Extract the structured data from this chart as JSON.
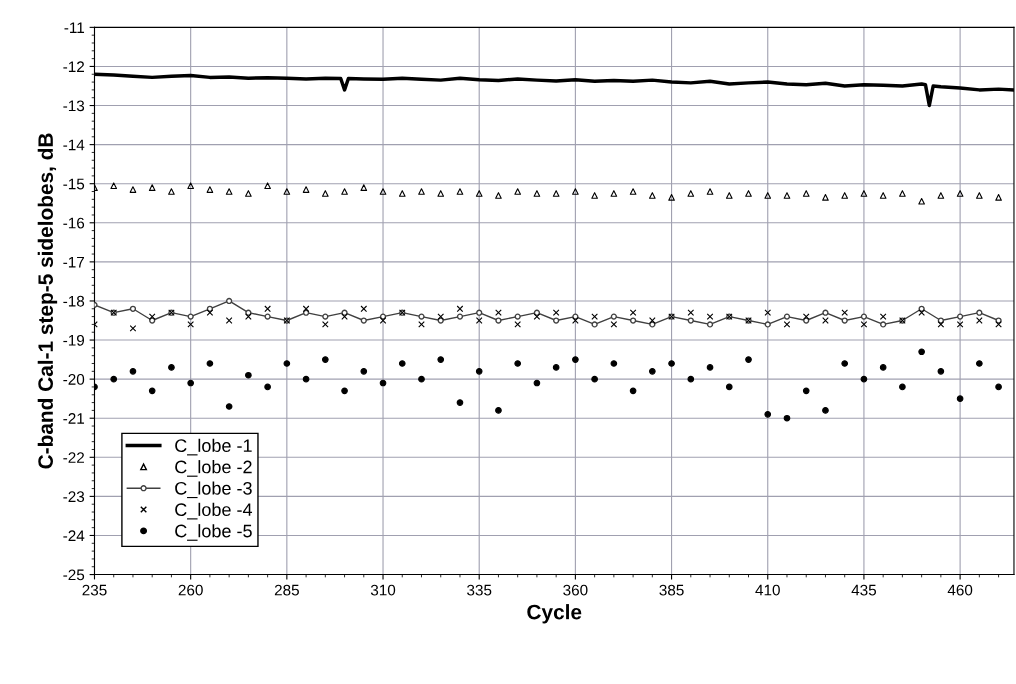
{
  "chart_data": {
    "type": "scatter",
    "xlabel": "Cycle",
    "ylabel": "C-band Cal-1 step-5 sidelobes, dB",
    "x": [
      235,
      240,
      245,
      250,
      255,
      260,
      265,
      270,
      275,
      280,
      285,
      290,
      295,
      300,
      305,
      310,
      315,
      320,
      325,
      330,
      335,
      340,
      345,
      350,
      355,
      360,
      365,
      370,
      375,
      380,
      385,
      390,
      395,
      400,
      405,
      410,
      415,
      420,
      425,
      430,
      435,
      440,
      445,
      450,
      455,
      460,
      465,
      470
    ],
    "xlim": [
      235,
      474
    ],
    "xticks": [
      235,
      260,
      285,
      310,
      335,
      360,
      385,
      410,
      435,
      460
    ],
    "ylim": [
      -25,
      -11
    ],
    "yticks": [
      -25,
      -24,
      -23,
      -22,
      -21,
      -20,
      -19,
      -18,
      -17,
      -16,
      -15,
      -14,
      -13,
      -12,
      -11
    ],
    "grid": true,
    "legend": "bottom left",
    "series": [
      {
        "name": "C_lobe -1",
        "type": "line",
        "marker": "none",
        "color": "#000000",
        "x": [
          235,
          240,
          245,
          250,
          255,
          260,
          265,
          270,
          275,
          280,
          285,
          290,
          295,
          299,
          300,
          301,
          305,
          310,
          315,
          320,
          325,
          330,
          335,
          340,
          345,
          350,
          355,
          360,
          365,
          370,
          375,
          380,
          385,
          390,
          395,
          400,
          405,
          410,
          415,
          420,
          425,
          430,
          435,
          440,
          445,
          450,
          451,
          452,
          453,
          455,
          460,
          465,
          470,
          474
        ],
        "values": [
          -12.2,
          -12.22,
          -12.25,
          -12.28,
          -12.25,
          -12.23,
          -12.28,
          -12.27,
          -12.3,
          -12.29,
          -12.3,
          -12.32,
          -12.3,
          -12.31,
          -12.6,
          -12.31,
          -12.32,
          -12.33,
          -12.3,
          -12.33,
          -12.35,
          -12.3,
          -12.34,
          -12.36,
          -12.32,
          -12.35,
          -12.37,
          -12.34,
          -12.38,
          -12.36,
          -12.38,
          -12.35,
          -12.4,
          -12.42,
          -12.38,
          -12.45,
          -12.42,
          -12.4,
          -12.45,
          -12.47,
          -12.43,
          -12.5,
          -12.47,
          -12.48,
          -12.5,
          -12.45,
          -12.47,
          -13.0,
          -12.5,
          -12.52,
          -12.55,
          -12.6,
          -12.58,
          -12.6
        ]
      },
      {
        "name": "C_lobe -2",
        "marker": "triangle",
        "color": "#000000",
        "values": [
          -15.1,
          -15.05,
          -15.15,
          -15.1,
          -15.2,
          -15.05,
          -15.15,
          -15.2,
          -15.25,
          -15.05,
          -15.2,
          -15.15,
          -15.25,
          -15.2,
          -15.1,
          -15.2,
          -15.25,
          -15.2,
          -15.25,
          -15.2,
          -15.25,
          -15.3,
          -15.2,
          -15.25,
          -15.25,
          -15.2,
          -15.3,
          -15.25,
          -15.2,
          -15.3,
          -15.35,
          -15.25,
          -15.2,
          -15.3,
          -15.25,
          -15.3,
          -15.3,
          -15.25,
          -15.35,
          -15.3,
          -15.25,
          -15.3,
          -15.25,
          -15.45,
          -15.3,
          -15.25,
          -15.3,
          -15.35
        ]
      },
      {
        "name": "C_lobe -3",
        "type": "line",
        "marker": "circle",
        "color": "#404040",
        "values": [
          -18.1,
          -18.3,
          -18.2,
          -18.5,
          -18.3,
          -18.4,
          -18.2,
          -18.0,
          -18.3,
          -18.4,
          -18.5,
          -18.3,
          -18.4,
          -18.3,
          -18.5,
          -18.4,
          -18.3,
          -18.4,
          -18.5,
          -18.4,
          -18.3,
          -18.5,
          -18.4,
          -18.3,
          -18.5,
          -18.4,
          -18.6,
          -18.4,
          -18.5,
          -18.6,
          -18.4,
          -18.5,
          -18.6,
          -18.4,
          -18.5,
          -18.6,
          -18.4,
          -18.5,
          -18.3,
          -18.5,
          -18.4,
          -18.6,
          -18.5,
          -18.2,
          -18.5,
          -18.4,
          -18.3,
          -18.5
        ]
      },
      {
        "name": "C_lobe -4",
        "marker": "cross",
        "color": "#000000",
        "values": [
          -18.6,
          -18.3,
          -18.7,
          -18.4,
          -18.3,
          -18.6,
          -18.3,
          -18.5,
          -18.4,
          -18.2,
          -18.5,
          -18.2,
          -18.6,
          -18.4,
          -18.2,
          -18.5,
          -18.3,
          -18.6,
          -18.4,
          -18.2,
          -18.5,
          -18.3,
          -18.6,
          -18.4,
          -18.3,
          -18.5,
          -18.4,
          -18.6,
          -18.3,
          -18.5,
          -18.4,
          -18.3,
          -18.4,
          -18.4,
          -18.5,
          -18.3,
          -18.6,
          -18.4,
          -18.5,
          -18.3,
          -18.6,
          -18.4,
          -18.5,
          -18.3,
          -18.6,
          -18.6,
          -18.5,
          -18.6
        ]
      },
      {
        "name": "C_lobe -5",
        "marker": "circle",
        "color": "#000000",
        "values": [
          -20.2,
          -20.0,
          -19.8,
          -20.3,
          -19.7,
          -20.1,
          -19.6,
          -20.7,
          -19.9,
          -20.2,
          -19.6,
          -20.0,
          -19.5,
          -20.3,
          -19.8,
          -20.1,
          -19.6,
          -20.0,
          -19.5,
          -20.6,
          -19.8,
          -20.8,
          -19.6,
          -20.1,
          -19.7,
          -19.5,
          -20.0,
          -19.6,
          -20.3,
          -19.8,
          -19.6,
          -20.0,
          -19.7,
          -20.2,
          -19.5,
          -20.9,
          -21.0,
          -20.3,
          -20.8,
          -19.6,
          -20.0,
          -19.7,
          -20.2,
          -19.3,
          -19.8,
          -20.5,
          -19.6,
          -20.2
        ]
      }
    ]
  }
}
